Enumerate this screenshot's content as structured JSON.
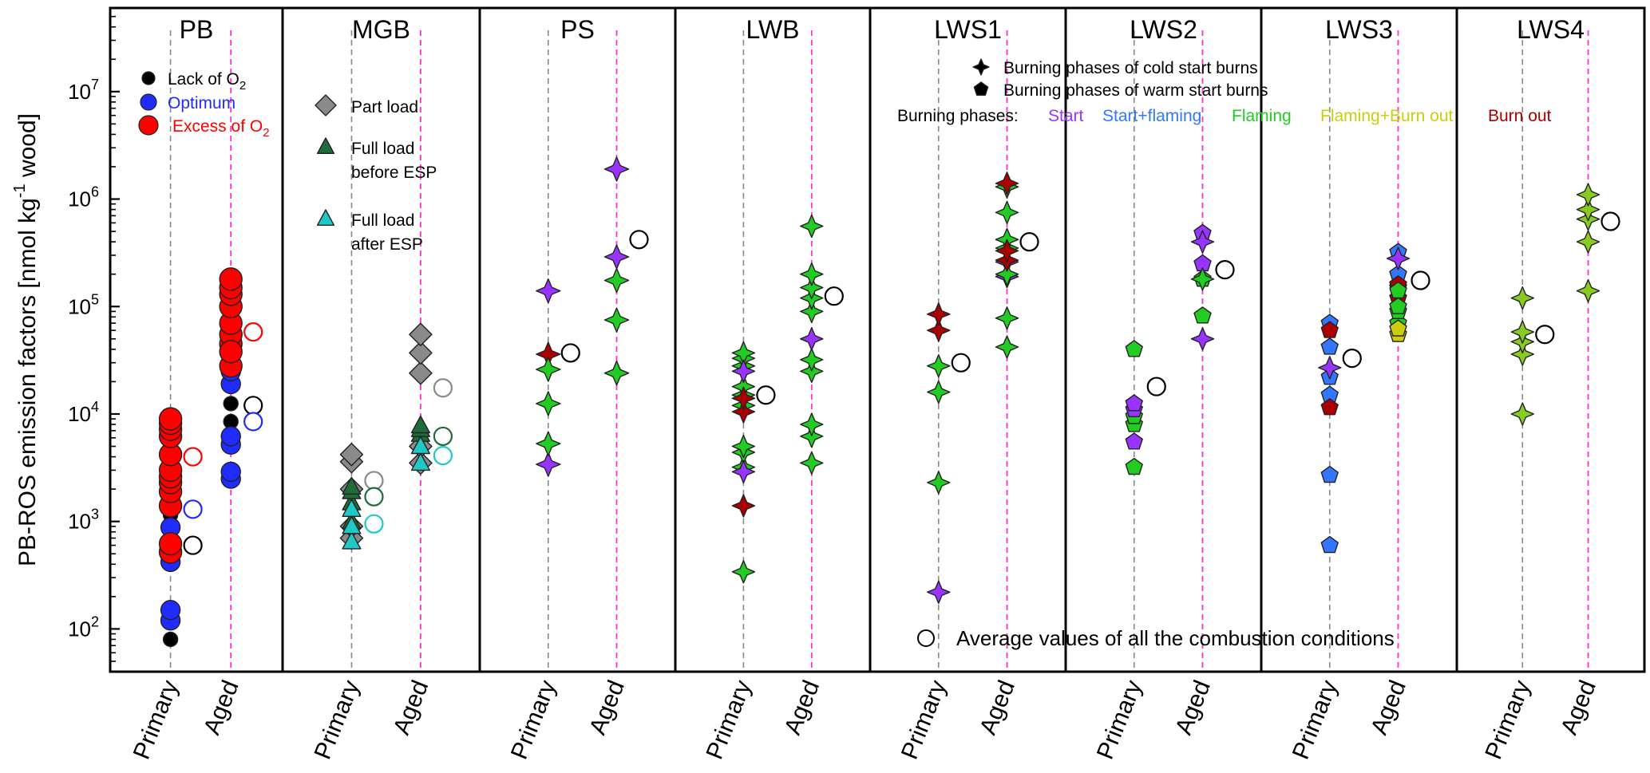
{
  "chart_data": {
    "type": "scatter",
    "ylabel_main": "PB-ROS emission factors [nmol kg",
    "ylabel_sup": "-1",
    "ylabel_tail": " wood]",
    "y_scale": "log",
    "ylim": [
      40,
      60000000
    ],
    "y_ticks": [
      {
        "value": 100,
        "base": "10",
        "exp": "2"
      },
      {
        "value": 1000,
        "base": "10",
        "exp": "3"
      },
      {
        "value": 10000,
        "base": "10",
        "exp": "4"
      },
      {
        "value": 100000,
        "base": "10",
        "exp": "5"
      },
      {
        "value": 1000000,
        "base": "10",
        "exp": "6"
      },
      {
        "value": 10000000,
        "base": "10",
        "exp": "7"
      }
    ],
    "x_categories": [
      "Primary",
      "Aged"
    ],
    "colors": {
      "lack": "#000000",
      "optimum": "#1f2bff",
      "excess": "#ff0000",
      "part": "#8a8a8a",
      "full_before": "#1f6b3a",
      "full_after": "#20c8c8",
      "start": "#9933ff",
      "start_flaming": "#3377ff",
      "flaming": "#22cc22",
      "flaming_burnout": "#cccc11",
      "burnout": "#aa0000",
      "primary_line": "#888888",
      "aged_line": "#ff33cc"
    },
    "panels": [
      {
        "name": "PB",
        "groups": [
          {
            "cls": "lack",
            "shape": "circle",
            "r": 9,
            "primary": [
              80,
              600,
              1150
            ],
            "aged": [
              8500,
              12500,
              18000
            ]
          },
          {
            "cls": "optimum",
            "shape": "circle",
            "r": 12,
            "primary": [
              120,
              150,
              420,
              880,
              2300,
              2800,
              3100
            ],
            "aged": [
              2500,
              2900,
              5200,
              6200,
              19000,
              25000
            ]
          },
          {
            "cls": "excess",
            "shape": "circle",
            "r": 14,
            "primary": [
              520,
              620,
              1400,
              1900,
              2300,
              2600,
              3000,
              4200,
              6200,
              7200,
              8200,
              9000
            ],
            "aged": [
              45000,
              55000,
              70000,
              100000,
              130000,
              150000,
              180000,
              28000,
              38000
            ]
          }
        ],
        "averages": [
          {
            "cat": "primary",
            "value": 600,
            "cls": "lack"
          },
          {
            "cat": "primary",
            "value": 1300,
            "cls": "optimum"
          },
          {
            "cat": "primary",
            "value": 4000,
            "cls": "excess"
          },
          {
            "cat": "aged",
            "value": 12000,
            "cls": "lack"
          },
          {
            "cat": "aged",
            "value": 8500,
            "cls": "optimum"
          },
          {
            "cat": "aged",
            "value": 58000,
            "cls": "excess"
          }
        ]
      },
      {
        "name": "MGB",
        "groups": [
          {
            "cls": "part",
            "shape": "diamond",
            "r": 14,
            "primary": [
              700,
              900,
              2000,
              3600,
              4200
            ],
            "aged": [
              3500,
              5000,
              24000,
              37000,
              55000
            ]
          },
          {
            "cls": "full_before",
            "shape": "triangle",
            "r": 12,
            "primary": [
              1000,
              1500,
              1900,
              2100
            ],
            "aged": [
              6500,
              7200,
              7800
            ]
          },
          {
            "cls": "full_after",
            "shape": "triangle",
            "r": 12,
            "primary": [
              650,
              900,
              1300
            ],
            "aged": [
              3500,
              5000
            ]
          }
        ],
        "averages": [
          {
            "cat": "primary",
            "value": 2400,
            "cls": "part"
          },
          {
            "cat": "primary",
            "value": 1700,
            "cls": "full_before"
          },
          {
            "cat": "primary",
            "value": 950,
            "cls": "full_after"
          },
          {
            "cat": "aged",
            "value": 17500,
            "cls": "part"
          },
          {
            "cat": "aged",
            "value": 6200,
            "cls": "full_before"
          },
          {
            "cat": "aged",
            "value": 4100,
            "cls": "full_after"
          }
        ]
      },
      {
        "name": "PS",
        "groups": [
          {
            "cls": "start",
            "shape": "star",
            "r": 15,
            "primary": [
              3400,
              140000
            ],
            "aged": [
              290000,
              1900000
            ]
          },
          {
            "cls": "burnout",
            "shape": "star",
            "r": 15,
            "primary": [
              36000
            ],
            "aged": []
          },
          {
            "cls": "flaming",
            "shape": "star",
            "r": 15,
            "primary": [
              5300,
              12500,
              26000
            ],
            "aged": [
              24000,
              75000,
              175000
            ]
          }
        ],
        "averages": [
          {
            "cat": "primary",
            "value": 37000,
            "cls": "avg"
          },
          {
            "cat": "aged",
            "value": 420000,
            "cls": "avg"
          }
        ]
      },
      {
        "name": "LWB",
        "groups": [
          {
            "cls": "flaming",
            "shape": "star",
            "r": 14,
            "primary": [
              340,
              3200,
              4400,
              5000,
              12000,
              15000,
              18000,
              28000,
              33000,
              37000
            ],
            "aged": [
              3500,
              6200,
              8000,
              25000,
              32000,
              90000,
              120000,
              150000,
              200000,
              560000
            ]
          },
          {
            "cls": "start",
            "shape": "star",
            "r": 14,
            "primary": [
              2900,
              25000
            ],
            "aged": [
              50000
            ]
          },
          {
            "cls": "burnout",
            "shape": "star",
            "r": 14,
            "primary": [
              1400,
              10500,
              14000
            ],
            "aged": []
          }
        ],
        "averages": [
          {
            "cat": "primary",
            "value": 15000,
            "cls": "avg"
          },
          {
            "cat": "aged",
            "value": 125000,
            "cls": "avg"
          }
        ]
      },
      {
        "name": "LWS1",
        "groups": [
          {
            "cls": "start",
            "shape": "star",
            "r": 14,
            "primary": [
              220
            ],
            "aged": [
              190000,
              260000
            ]
          },
          {
            "cls": "flaming",
            "shape": "star",
            "r": 14,
            "primary": [
              2300,
              16000,
              28000
            ],
            "aged": [
              42000,
              78000,
              200000,
              350000,
              420000,
              750000,
              1300000
            ]
          },
          {
            "cls": "burnout",
            "shape": "star",
            "r": 14,
            "primary": [
              60000,
              85000
            ],
            "aged": [
              270000,
              330000,
              1400000
            ]
          }
        ],
        "averages": [
          {
            "cat": "primary",
            "value": 30000,
            "cls": "avg"
          },
          {
            "cat": "aged",
            "value": 400000,
            "cls": "avg"
          }
        ]
      },
      {
        "name": "LWS2",
        "groups": [
          {
            "cls": "flaming",
            "shape": "pentagon",
            "r": 11,
            "primary": [
              3200,
              8000,
              9500,
              40000
            ],
            "aged": [
              82000,
              180000
            ]
          },
          {
            "cls": "start",
            "shape": "pentagon",
            "r": 11,
            "primary": [
              5500,
              11000,
              12500
            ],
            "aged": [
              250000,
              480000
            ]
          },
          {
            "cls": "start",
            "shape": "star",
            "r": 14,
            "primary": [],
            "aged": [
              50000,
              400000
            ]
          },
          {
            "cls": "flaming",
            "shape": "star",
            "r": 14,
            "primary": [],
            "aged": [
              180000
            ]
          }
        ],
        "averages": [
          {
            "cat": "primary",
            "value": 18000,
            "cls": "avg"
          },
          {
            "cat": "aged",
            "value": 220000,
            "cls": "avg"
          }
        ]
      },
      {
        "name": "LWS3",
        "groups": [
          {
            "cls": "start_flaming",
            "shape": "pentagon",
            "r": 11,
            "primary": [
              600,
              2700,
              15000,
              22000,
              42000,
              70000
            ],
            "aged": [
              200000,
              320000
            ]
          },
          {
            "cls": "start",
            "shape": "star",
            "r": 14,
            "primary": [
              27000
            ],
            "aged": [
              280000
            ]
          },
          {
            "cls": "burnout",
            "shape": "pentagon",
            "r": 11,
            "primary": [
              11500,
              60000
            ],
            "aged": [
              120000,
              150000,
              160000
            ]
          },
          {
            "cls": "flaming",
            "shape": "pentagon",
            "r": 11,
            "primary": [],
            "aged": [
              70000,
              90000,
              100000,
              140000
            ]
          },
          {
            "cls": "flaming_burnout",
            "shape": "pentagon",
            "r": 11,
            "primary": [],
            "aged": [
              55000,
              62000
            ]
          }
        ],
        "averages": [
          {
            "cat": "primary",
            "value": 33000,
            "cls": "avg"
          },
          {
            "cat": "aged",
            "value": 175000,
            "cls": "avg"
          }
        ]
      },
      {
        "name": "LWS4",
        "groups": [
          {
            "cls": "flaming_yg",
            "shape": "star",
            "r": 14,
            "primary": [
              10000,
              36000,
              47000,
              58000,
              120000
            ],
            "aged": [
              140000,
              400000,
              650000,
              800000,
              1100000
            ]
          }
        ],
        "averages": [
          {
            "cat": "primary",
            "value": 55000,
            "cls": "avg"
          },
          {
            "cat": "aged",
            "value": 620000,
            "cls": "avg"
          }
        ]
      }
    ],
    "legend_pb": [
      {
        "label": "Lack of O",
        "sub": "2",
        "cls": "lack",
        "color": "#000000"
      },
      {
        "label": "Optimum",
        "sub": "",
        "cls": "optimum",
        "color": "#1f2bff"
      },
      {
        "label": "Excess of O",
        "sub": "2",
        "cls": "excess",
        "color": "#ff0000"
      }
    ],
    "legend_mgb": [
      {
        "label": "Part load",
        "cls": "part",
        "shape": "diamond"
      },
      {
        "label": "Full load",
        "label2": "before ESP",
        "cls": "full_before",
        "shape": "triangle"
      },
      {
        "label": "Full load",
        "label2": "after ESP",
        "cls": "full_after",
        "shape": "triangle"
      }
    ],
    "legend_burn": {
      "cold": "Burning phases of cold start burns",
      "warm": "Burning phases of warm start burns",
      "phases_label": "Burning phases:",
      "phases": [
        {
          "label": "Start",
          "color": "#9933ff"
        },
        {
          "label": "Start+flaming",
          "color": "#3377ff"
        },
        {
          "label": "Flaming",
          "color": "#22cc22"
        },
        {
          "label": "Flaming+Burn out",
          "color": "#cccc11"
        },
        {
          "label": "Burn out",
          "color": "#aa0000"
        }
      ]
    },
    "legend_avg": "Average values of all the combustion conditions"
  }
}
